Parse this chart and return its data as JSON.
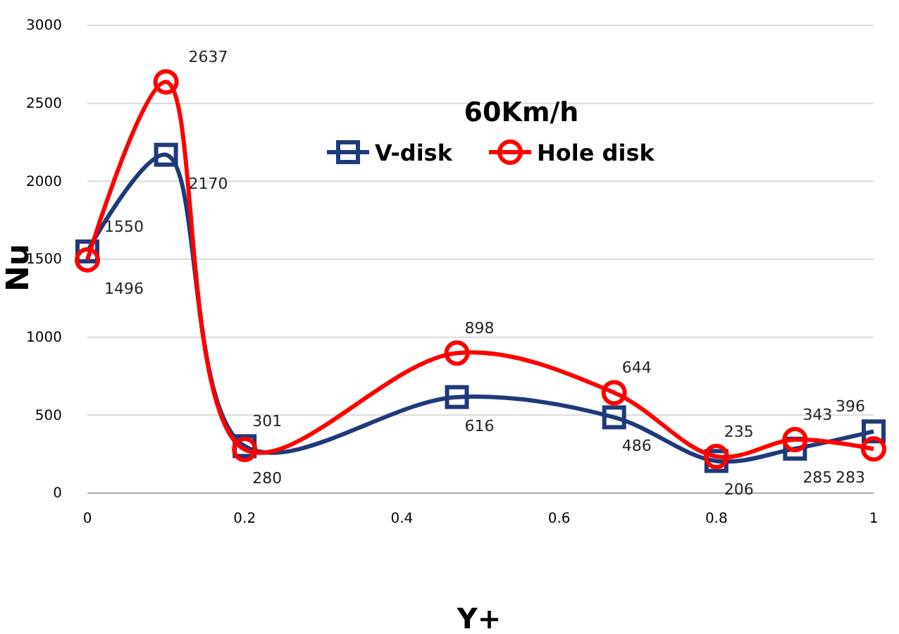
{
  "chart_data": {
    "type": "line",
    "title": "60Km/h",
    "xlabel": "Y+",
    "ylabel": "Nu",
    "xlim": [
      0,
      1
    ],
    "xticks": [
      0,
      0.2,
      0.4,
      0.6,
      0.8,
      1
    ],
    "ylim": [
      0,
      3000
    ],
    "yticks": [
      0,
      500,
      1000,
      1500,
      2000,
      2500,
      3000
    ],
    "grid": "y",
    "legend": "top",
    "data_labels": true,
    "series": [
      {
        "name": "V-disk",
        "color": "#1f3a7a",
        "marker": "square",
        "x": [
          0,
          0.1,
          0.2,
          0.47,
          0.67,
          0.8,
          0.9,
          1
        ],
        "values": [
          1550,
          2170,
          301,
          616,
          486,
          206,
          285,
          396
        ]
      },
      {
        "name": "Hole disk",
        "color": "#ff0000",
        "marker": "circle",
        "x": [
          0,
          0.1,
          0.2,
          0.47,
          0.67,
          0.8,
          0.9,
          1
        ],
        "values": [
          1496,
          2637,
          280,
          898,
          644,
          235,
          343,
          283
        ]
      }
    ]
  }
}
